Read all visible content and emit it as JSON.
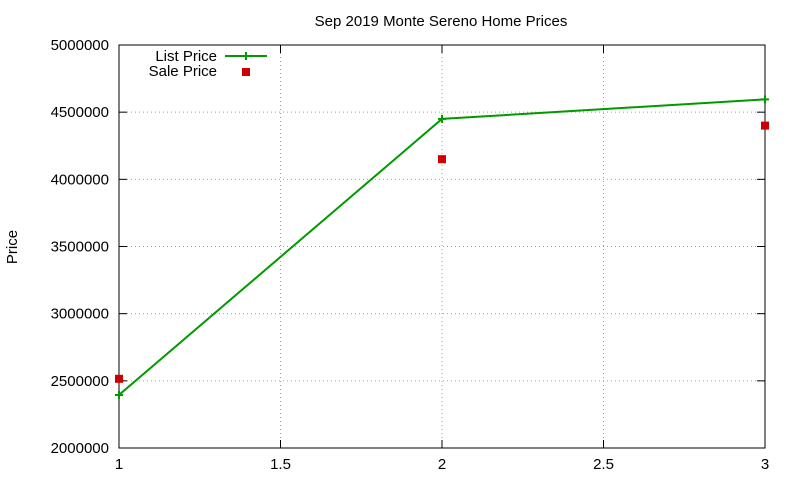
{
  "chart_data": {
    "type": "line",
    "title": "Sep 2019 Monte Sereno Home Prices",
    "xlabel": "",
    "ylabel": "Price",
    "xlim": [
      1,
      3
    ],
    "ylim": [
      2000000,
      5000000
    ],
    "x_ticks": [
      "1",
      "1.5",
      "2",
      "2.5",
      "3"
    ],
    "x_tick_values": [
      1,
      1.5,
      2,
      2.5,
      3
    ],
    "y_ticks": [
      "2000000",
      "2500000",
      "3000000",
      "3500000",
      "4000000",
      "4500000",
      "5000000"
    ],
    "y_tick_values": [
      2000000,
      2500000,
      3000000,
      3500000,
      4000000,
      4500000,
      5000000
    ],
    "grid": true,
    "legend_position": "top-left",
    "series": [
      {
        "name": "List Price",
        "style": "line-with-plus-markers",
        "color": "#009900",
        "x": [
          1,
          2,
          3
        ],
        "y": [
          2395000,
          4450000,
          4595000
        ]
      },
      {
        "name": "Sale Price",
        "style": "square-points",
        "color": "#cc0000",
        "x": [
          1,
          2,
          3
        ],
        "y": [
          2515000,
          4150000,
          4400000
        ]
      }
    ]
  }
}
